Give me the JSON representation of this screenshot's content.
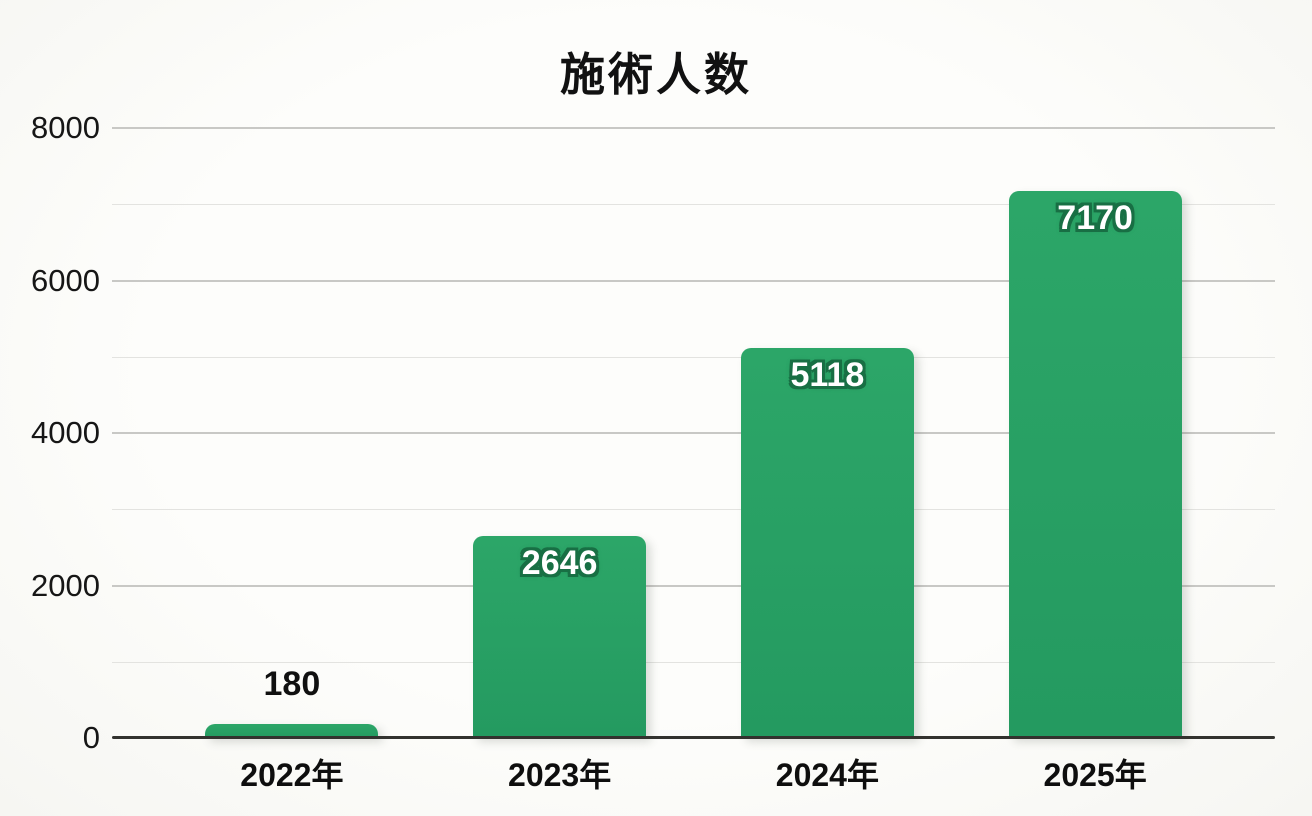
{
  "chart_data": {
    "type": "bar",
    "title": "施術人数",
    "categories": [
      "2022年",
      "2023年",
      "2024年",
      "2025年"
    ],
    "values": [
      180,
      2646,
      5118,
      7170
    ],
    "value_labels": [
      "180",
      "2646",
      "5118",
      "7170"
    ],
    "xlabel": "",
    "ylabel": "",
    "ylim": [
      0,
      8000
    ],
    "y_tick_values": [
      0,
      2000,
      4000,
      6000,
      8000
    ],
    "y_tick_labels": [
      "0",
      "2000",
      "4000",
      "6000",
      "8000"
    ],
    "gridline_step": 1000,
    "grid": "horizontal",
    "legend_position": "none",
    "colors": {
      "bar": "#249a60",
      "bar_top": "#2ca668",
      "value_label_fill": "#ffffff",
      "value_label_outline": "#186f44",
      "small_bar_label": "#101010",
      "axis_line": "#32322e",
      "gridline_major": "#c8c8c5",
      "gridline_minor": "#e3e3e0",
      "background": "#fbfbf8"
    }
  }
}
